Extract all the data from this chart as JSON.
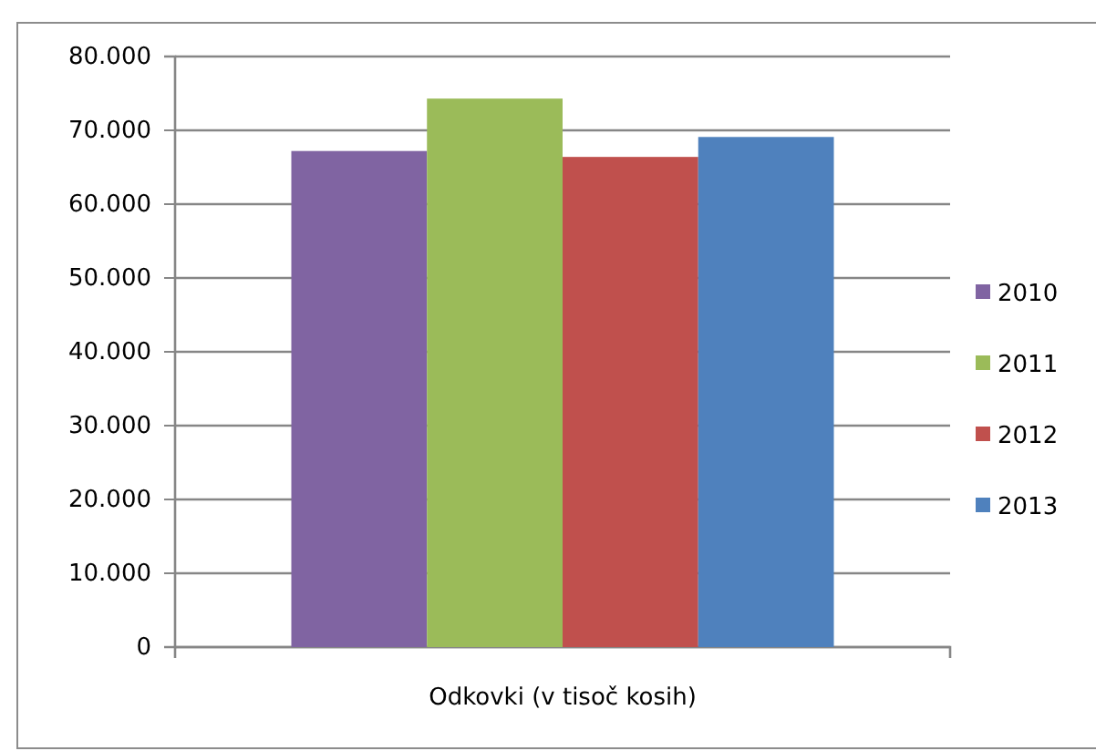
{
  "chart_data": {
    "type": "bar",
    "categories": [
      "Odkovki (v tisoč kosih)"
    ],
    "series": [
      {
        "name": "2010",
        "color": "#8064a2",
        "values": [
          67200
        ]
      },
      {
        "name": "2011",
        "color": "#9bbb59",
        "values": [
          74300
        ]
      },
      {
        "name": "2012",
        "color": "#c0504d",
        "values": [
          66400
        ]
      },
      {
        "name": "2013",
        "color": "#4f81bd",
        "values": [
          69100
        ]
      }
    ],
    "ylim": [
      0,
      80000
    ],
    "yticks": [
      {
        "value": 0,
        "label": "0"
      },
      {
        "value": 10000,
        "label": "10.000"
      },
      {
        "value": 20000,
        "label": "20.000"
      },
      {
        "value": 30000,
        "label": "30.000"
      },
      {
        "value": 40000,
        "label": "40.000"
      },
      {
        "value": 50000,
        "label": "50.000"
      },
      {
        "value": 60000,
        "label": "60.000"
      },
      {
        "value": 70000,
        "label": "70.000"
      },
      {
        "value": 80000,
        "label": "80.000"
      }
    ],
    "grid": "y",
    "legend": "right"
  }
}
